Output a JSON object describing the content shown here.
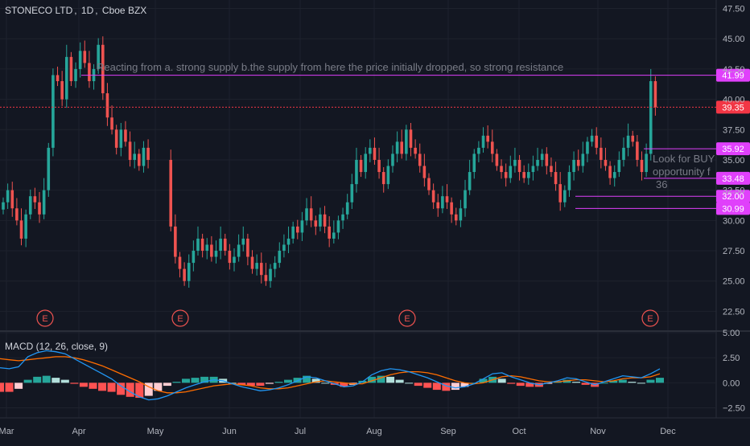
{
  "header": {
    "symbol": "STONECO LTD",
    "interval": "1D",
    "exchange": "Cboe BZX"
  },
  "annotations": {
    "resistance_note": "Reacting from  a. strong supply   b.the supply from here the price initially dropped, so strong resistance",
    "buy_note_line1": "Look for BUY",
    "buy_note_line2": "opportunity f",
    "buy_note_line3": "36",
    "earnings_marker": "E"
  },
  "macd": {
    "label": "MACD (12, 26, close, 9)",
    "ticks": [
      "5.00",
      "2.50",
      "0.00",
      "−2.50"
    ],
    "ylim": [
      -3.5,
      5.0
    ]
  },
  "colors": {
    "background": "#131722",
    "grid": "#1e222d",
    "up": "#26a69a",
    "down": "#ef5350",
    "level": "#e040fb",
    "last_price": "#f23645",
    "macd_line": "#2196f3",
    "signal_line": "#ff6d00",
    "hist_up_strong": "#26a69a",
    "hist_up_weak": "#b2dfdb",
    "hist_down_strong": "#ff5252",
    "hist_down_weak": "#ffcdd2"
  },
  "chart_data": {
    "type": "candlestick",
    "title": "STONECO LTD, 1D, Cboe BZX",
    "x_axis_labels": [
      "Mar",
      "Apr",
      "May",
      "Jun",
      "Jul",
      "Aug",
      "Sep",
      "Oct",
      "Nov",
      "Dec"
    ],
    "y_axis_ticks": [
      "47.50",
      "45.00",
      "42.50",
      "40.00",
      "37.50",
      "35.00",
      "32.50",
      "30.00",
      "27.50",
      "25.00",
      "22.50"
    ],
    "ylim": [
      21.0,
      48.2
    ],
    "horizontal_levels": [
      {
        "value": 41.99,
        "label": "41.99",
        "style": "solid"
      },
      {
        "value": 39.35,
        "label": "39.35",
        "style": "dotted"
      },
      {
        "value": 35.92,
        "label": "35.92",
        "style": "solid"
      },
      {
        "value": 33.48,
        "label": "33.48",
        "style": "solid"
      },
      {
        "value": 32.0,
        "label": "32.00",
        "style": "solid"
      },
      {
        "value": 30.99,
        "label": "30.99",
        "style": "solid"
      }
    ],
    "earnings_events": [
      "Mar",
      "May",
      "Aug",
      "Nov"
    ],
    "price_series": [
      31.5,
      32.5,
      31.0,
      30.0,
      28.5,
      30.5,
      32.0,
      31.5,
      30.5,
      32.5,
      36.0,
      42.0,
      41.5,
      40.0,
      43.5,
      41.5,
      42.5,
      44.0,
      43.0,
      41.5,
      42.5,
      44.5,
      40.5,
      38.5,
      37.5,
      36.0,
      37.5,
      36.5,
      35.0,
      35.5,
      34.5,
      36.0,
      35.0,
      29.5,
      27.0,
      26.0,
      25.0,
      26.5,
      27.5,
      28.5,
      27.5,
      28.0,
      27.0,
      27.5,
      28.5,
      27.5,
      26.5,
      27.0,
      28.0,
      28.5,
      27.0,
      26.0,
      26.5,
      25.5,
      25.0,
      26.0,
      26.5,
      27.5,
      28.0,
      28.5,
      29.5,
      29.0,
      30.0,
      31.0,
      30.0,
      29.5,
      30.5,
      29.5,
      28.5,
      29.0,
      30.0,
      30.5,
      31.5,
      33.0,
      35.0,
      34.0,
      35.5,
      36.0,
      35.0,
      34.0,
      33.0,
      34.5,
      35.5,
      36.5,
      35.5,
      37.5,
      36.0,
      35.5,
      34.5,
      33.5,
      32.5,
      31.5,
      31.0,
      32.0,
      31.5,
      30.5,
      30.0,
      31.0,
      32.5,
      34.0,
      35.5,
      36.0,
      37.0,
      36.5,
      35.5,
      34.5,
      34.0,
      33.5,
      34.5,
      35.0,
      34.0,
      33.5,
      34.0,
      34.5,
      35.0,
      35.5,
      34.5,
      34.0,
      33.0,
      31.5,
      32.5,
      34.0,
      35.0,
      34.5,
      35.5,
      36.5,
      37.0,
      36.0,
      35.0,
      34.5,
      33.5,
      34.0,
      35.0,
      36.0,
      37.0,
      36.5,
      35.0,
      34.0,
      35.5,
      41.5,
      39.35
    ],
    "macd_series": {
      "macd": [
        1.5,
        1.4,
        1.6,
        2.6,
        3.0,
        3.2,
        3.1,
        2.9,
        2.4,
        1.9,
        1.4,
        0.9,
        0.4,
        -0.3,
        -0.9,
        -1.4,
        -1.7,
        -1.6,
        -1.3,
        -0.9,
        -0.5,
        -0.2,
        0.1,
        0.3,
        0.2,
        -0.1,
        -0.4,
        -0.6,
        -0.8,
        -0.7,
        -0.5,
        -0.2,
        0.2,
        0.6,
        0.5,
        0.2,
        -0.1,
        -0.4,
        -0.3,
        0.1,
        0.8,
        1.2,
        1.4,
        1.3,
        1.1,
        0.8,
        0.5,
        0.1,
        -0.3,
        -0.5,
        -0.4,
        -0.1,
        0.4,
        0.9,
        1.0,
        0.6,
        0.3,
        0.0,
        -0.2,
        0.0,
        0.2,
        0.5,
        0.4,
        0.1,
        -0.2,
        0.1,
        0.4,
        0.7,
        0.6,
        0.5,
        0.9,
        1.4
      ],
      "signal": [
        2.4,
        2.3,
        2.2,
        2.3,
        2.4,
        2.5,
        2.6,
        2.6,
        2.5,
        2.3,
        2.0,
        1.7,
        1.3,
        0.9,
        0.5,
        0.1,
        -0.4,
        -0.8,
        -1.0,
        -1.0,
        -0.9,
        -0.7,
        -0.5,
        -0.3,
        -0.2,
        -0.1,
        -0.2,
        -0.3,
        -0.5,
        -0.6,
        -0.6,
        -0.5,
        -0.3,
        -0.1,
        0.1,
        0.2,
        0.1,
        0.0,
        -0.1,
        -0.1,
        0.2,
        0.5,
        0.8,
        1.0,
        1.1,
        1.1,
        1.0,
        0.8,
        0.5,
        0.2,
        0.0,
        -0.1,
        0.0,
        0.3,
        0.6,
        0.7,
        0.6,
        0.4,
        0.2,
        0.1,
        0.1,
        0.2,
        0.3,
        0.3,
        0.2,
        0.1,
        0.2,
        0.4,
        0.5,
        0.5,
        0.6,
        0.9
      ]
    }
  }
}
